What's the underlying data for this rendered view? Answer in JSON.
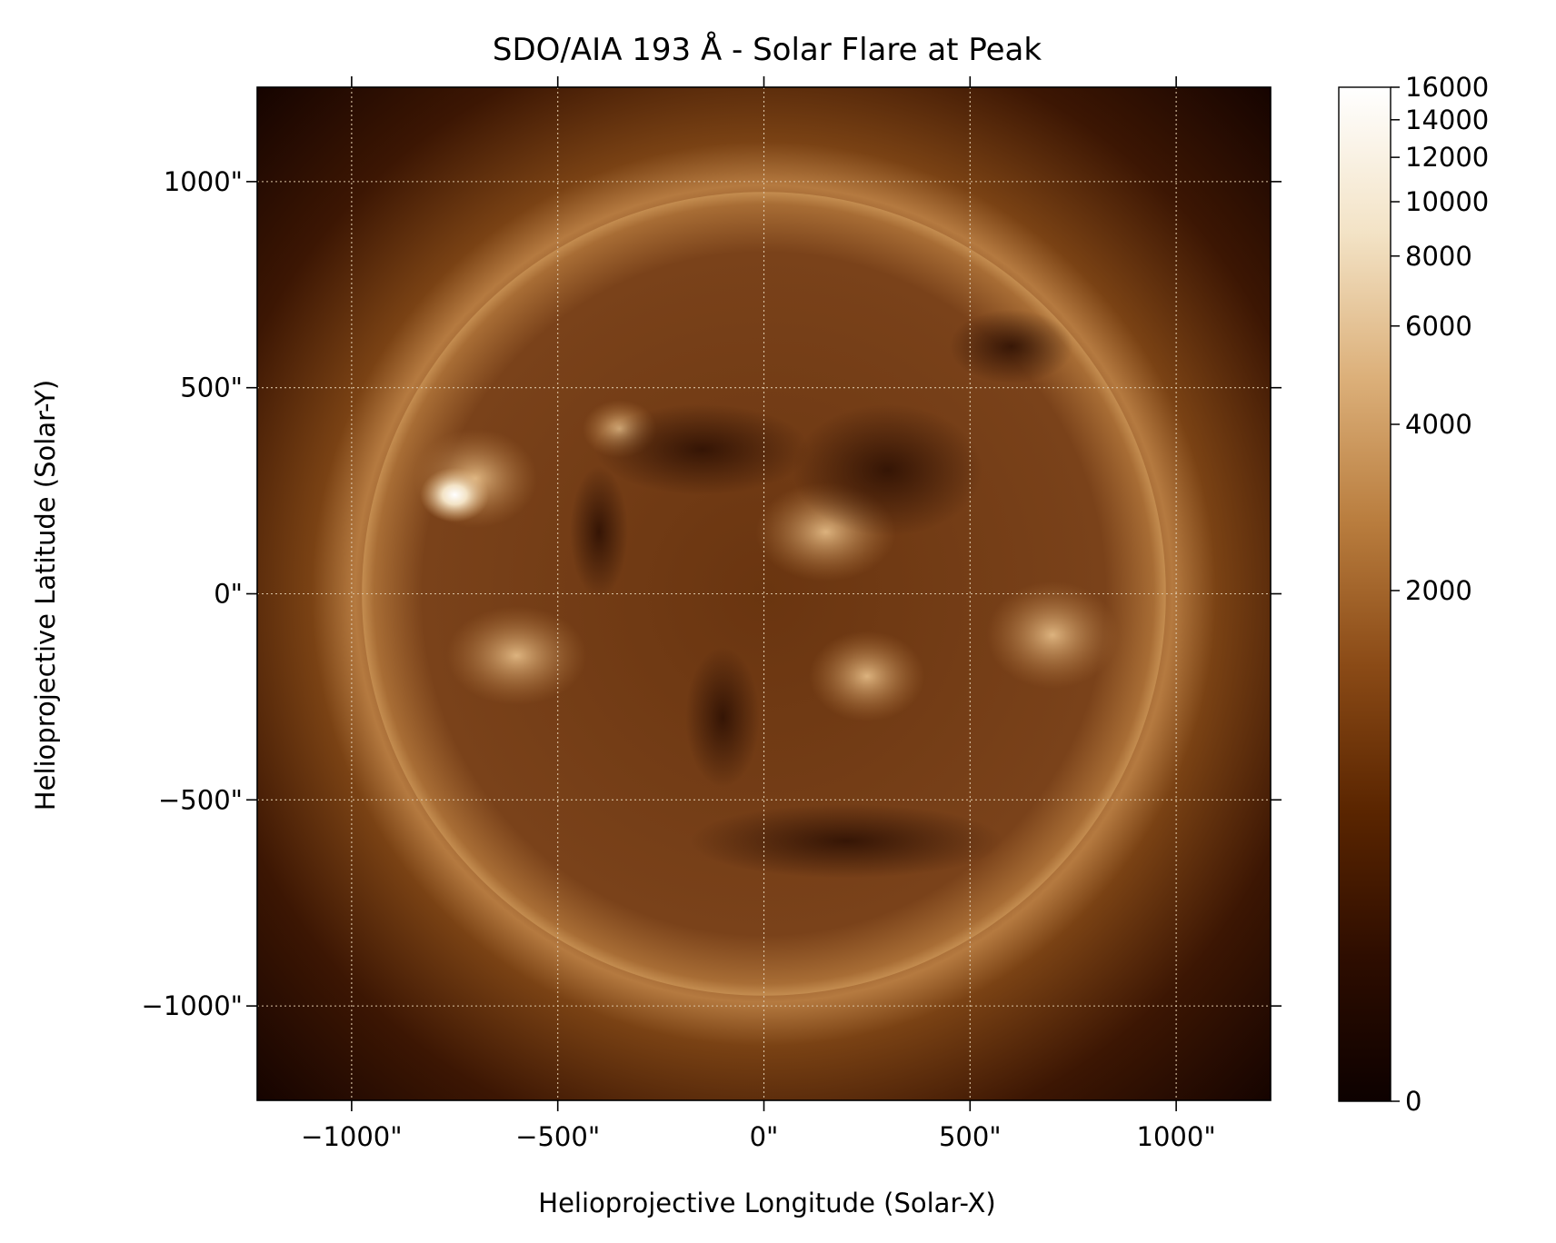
{
  "chart_data": {
    "type": "heatmap",
    "title": "SDO/AIA 193 Å - Solar Flare at Peak",
    "xlabel": "Helioprojective Longitude (Solar-X)",
    "ylabel": "Helioprojective Latitude (Solar-Y)",
    "xlim": [
      -1229,
      1229
    ],
    "ylim": [
      -1229,
      1229
    ],
    "x_ticks": [
      -1000,
      -500,
      0,
      500,
      1000
    ],
    "y_ticks": [
      1000,
      500,
      0,
      -500,
      -1000
    ],
    "x_tick_labels": [
      "−1000\"",
      "−500\"",
      "0\"",
      "500\"",
      "1000\""
    ],
    "y_tick_labels": [
      "1000\"",
      "500\"",
      "0\"",
      "−500\"",
      "−1000\""
    ],
    "grid": true,
    "solar_disk_radius_arcsec": 975,
    "flare_location_arcsec": [
      -750,
      240
    ],
    "colorbar": {
      "scale": "asinh",
      "min": 0,
      "max": 16000,
      "ticks": [
        0,
        2000,
        4000,
        6000,
        8000,
        10000,
        12000,
        14000,
        16000
      ],
      "tick_labels": [
        "0",
        "2000",
        "4000",
        "6000",
        "8000",
        "10000",
        "12000",
        "14000",
        "16000"
      ],
      "colors": [
        "#0d0100",
        "#2e0d00",
        "#5a2500",
        "#8a4a16",
        "#b97d3e",
        "#dcb07a",
        "#f3e3c6",
        "#ffffff"
      ]
    }
  }
}
